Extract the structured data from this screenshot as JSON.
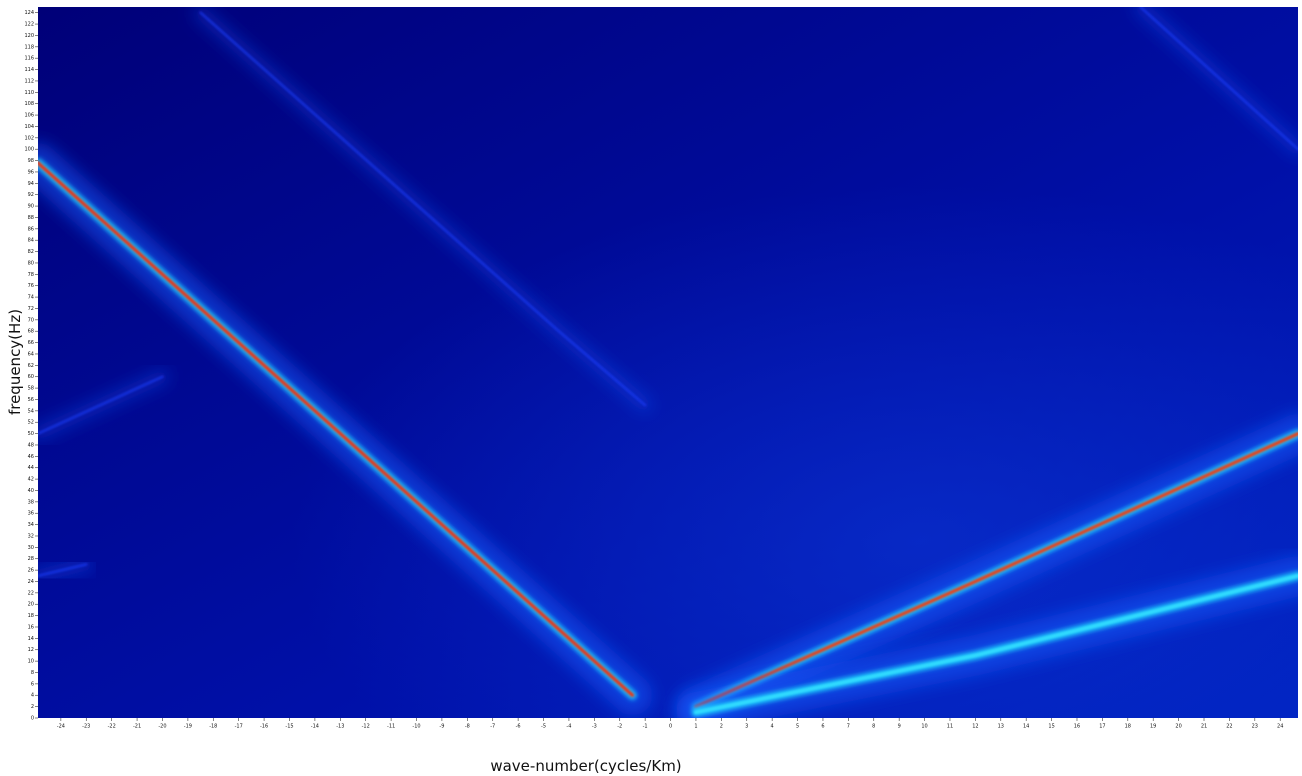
{
  "chart_data": {
    "type": "heatmap",
    "xlabel": "wave-number(cycles/Km)",
    "ylabel": "frequency(Hz)",
    "xlim": [
      -24.9,
      24.7
    ],
    "ylim": [
      0,
      125
    ],
    "xticks": [
      -24,
      -23,
      -22,
      -21,
      -20,
      -19,
      -18,
      -17,
      -16,
      -15,
      -14,
      -13,
      -12,
      -11,
      -10,
      -9,
      -8,
      -7,
      -6,
      -5,
      -4,
      -3,
      -2,
      -1,
      0,
      1,
      2,
      3,
      4,
      5,
      6,
      7,
      8,
      9,
      10,
      11,
      12,
      13,
      14,
      15,
      16,
      17,
      18,
      19,
      20,
      21,
      22,
      23,
      24
    ],
    "yticks": [
      0,
      2,
      4,
      6,
      8,
      10,
      12,
      14,
      16,
      18,
      20,
      22,
      24,
      26,
      28,
      30,
      32,
      34,
      36,
      38,
      40,
      42,
      44,
      46,
      48,
      50,
      52,
      54,
      56,
      58,
      60,
      62,
      64,
      66,
      68,
      70,
      72,
      74,
      76,
      78,
      80,
      82,
      84,
      86,
      88,
      90,
      92,
      94,
      96,
      98,
      100,
      102,
      104,
      106,
      108,
      110,
      112,
      114,
      116,
      118,
      120,
      122,
      124
    ],
    "series": [
      {
        "color": "#ff2a00",
        "x": [
          -24.9,
          -13,
          -1.5
        ],
        "values": [
          97.6,
          50,
          4
        ]
      },
      {
        "color": "#ff3300",
        "x": [
          1,
          12,
          24.7
        ],
        "values": [
          2,
          24,
          50
        ]
      },
      {
        "color": "#33e0ff",
        "x": [
          1,
          12,
          24.7
        ],
        "values": [
          1,
          11,
          25
        ]
      },
      {
        "color": "#1a3cff",
        "x": [
          -18.5,
          -4.4,
          -1
        ],
        "values": [
          124,
          68,
          55
        ]
      },
      {
        "color": "#1a3cff",
        "x": [
          18.5,
          24.7
        ],
        "values": [
          125,
          100
        ]
      },
      {
        "color": "#1a3cff",
        "x": [
          -24.9,
          -20
        ],
        "values": [
          50,
          60
        ]
      },
      {
        "color": "#1a3cff",
        "x": [
          -24.9,
          -23
        ],
        "values": [
          25,
          27
        ]
      }
    ]
  }
}
